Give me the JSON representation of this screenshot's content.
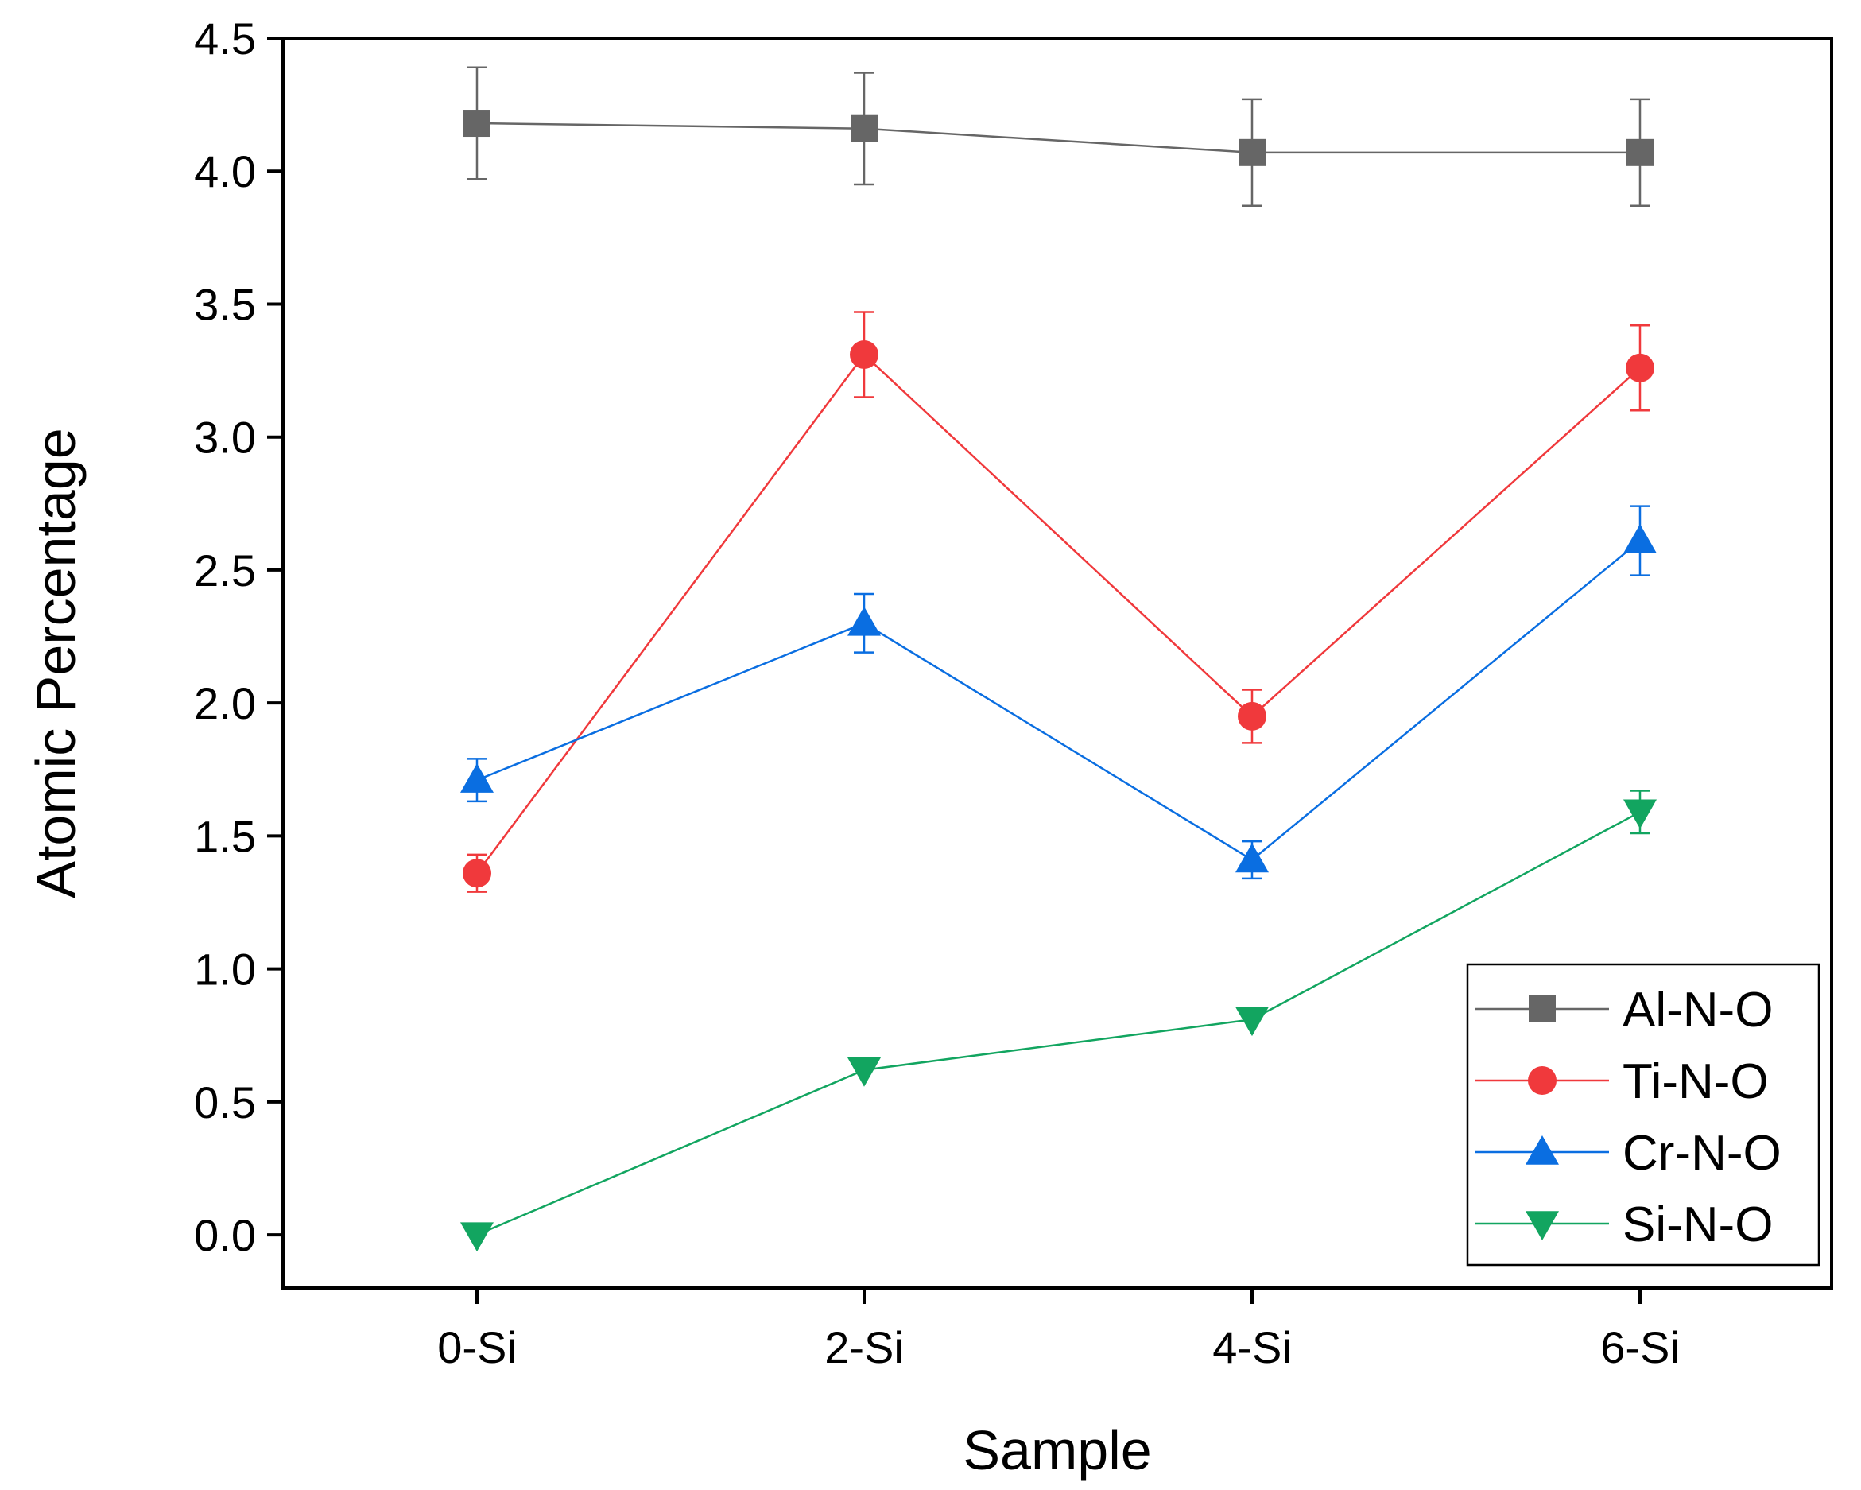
{
  "chart_data": {
    "type": "line",
    "title": "",
    "xlabel": "Sample",
    "ylabel": "Atomic Percentage",
    "categories": [
      "0-Si",
      "2-Si",
      "4-Si",
      "6-Si"
    ],
    "ylim": [
      -0.2,
      4.5
    ],
    "yticks": [
      0.0,
      0.5,
      1.0,
      1.5,
      2.0,
      2.5,
      3.0,
      3.5,
      4.0,
      4.5
    ],
    "ytick_labels": [
      "0.0",
      "0.5",
      "1.0",
      "1.5",
      "2.0",
      "2.5",
      "3.0",
      "3.5",
      "4.0",
      "4.5"
    ],
    "grid": false,
    "legend_position": "bottom-right",
    "series": [
      {
        "name": "Al-N-O",
        "values": [
          4.18,
          4.16,
          4.07,
          4.07
        ],
        "errors": [
          0.21,
          0.21,
          0.2,
          0.2
        ],
        "color": "#666666",
        "marker": "square"
      },
      {
        "name": "Ti-N-O",
        "values": [
          1.36,
          3.31,
          1.95,
          3.26
        ],
        "errors": [
          0.07,
          0.16,
          0.1,
          0.16
        ],
        "color": "#f0393c",
        "marker": "circle"
      },
      {
        "name": "Cr-N-O",
        "values": [
          1.71,
          2.3,
          1.41,
          2.61
        ],
        "errors": [
          0.08,
          0.11,
          0.07,
          0.13
        ],
        "color": "#0a6ee1",
        "marker": "triangle-up"
      },
      {
        "name": "Si-N-O",
        "values": [
          0.0,
          0.62,
          0.81,
          1.59
        ],
        "errors": [
          0.0,
          0.0,
          0.0,
          0.08
        ],
        "color": "#12a560",
        "marker": "triangle-down"
      }
    ]
  }
}
